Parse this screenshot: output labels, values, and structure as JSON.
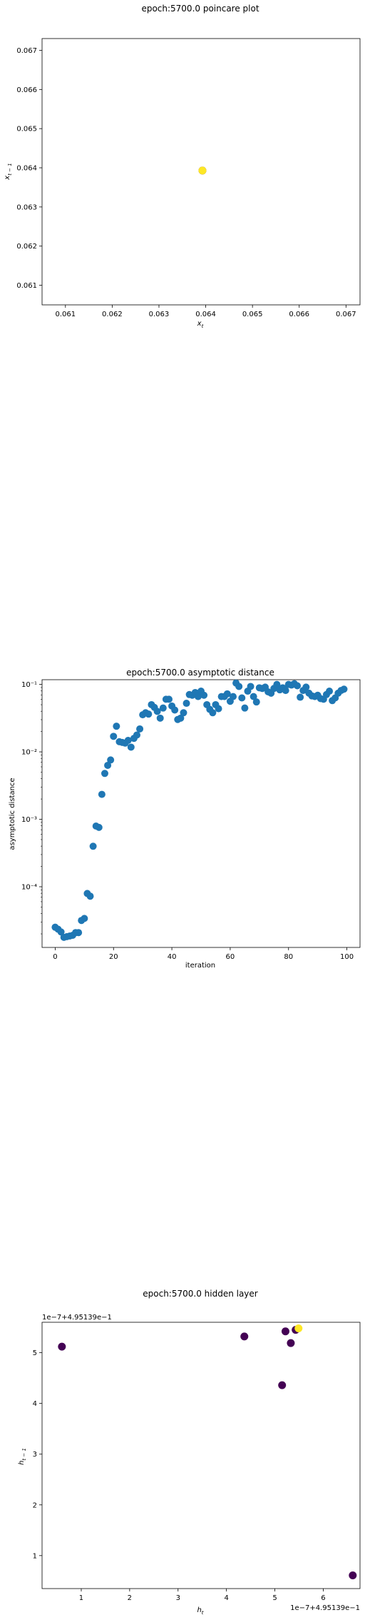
{
  "chart_data": [
    {
      "type": "scatter",
      "title": "epoch:5700.0 poincare plot",
      "xlabel": "x_t",
      "ylabel": "x_{t-1}",
      "xlim": [
        0.0605,
        0.0673
      ],
      "ylim": [
        0.0605,
        0.0673
      ],
      "xticks": [
        0.061,
        0.062,
        0.063,
        0.064,
        0.065,
        0.066,
        0.067
      ],
      "xtick_labels": [
        "0.061",
        "0.062",
        "0.063",
        "0.064",
        "0.065",
        "0.066",
        "0.067"
      ],
      "yticks": [
        0.061,
        0.062,
        0.063,
        0.064,
        0.065,
        0.066,
        0.067
      ],
      "ytick_labels": [
        "0.061",
        "0.062",
        "0.063",
        "0.064",
        "0.065",
        "0.066",
        "0.067"
      ],
      "points": [
        {
          "x": 0.06393,
          "y": 0.06393,
          "color": "#440154"
        },
        {
          "x": 0.06393,
          "y": 0.06393,
          "color": "#fde725"
        }
      ]
    },
    {
      "type": "scatter",
      "title": "epoch:5700.0 asymptotic distance",
      "xlabel": "iteration",
      "ylabel": "asymptotic distance",
      "yscale": "log",
      "xlim": [
        -4.5,
        104.5
      ],
      "ylim_log10": [
        -4.9,
        -0.93
      ],
      "xticks": [
        0,
        20,
        40,
        60,
        80,
        100
      ],
      "xtick_labels": [
        "0",
        "20",
        "40",
        "60",
        "80",
        "100"
      ],
      "yticks_exp": [
        -4,
        -3,
        -2,
        -1
      ],
      "ytick_labels": [
        "10⁻⁴",
        "10⁻³",
        "10⁻²",
        "10⁻¹"
      ],
      "color": "#1f77b4",
      "x": [
        0,
        1,
        2,
        3,
        4,
        5,
        6,
        7,
        8,
        9,
        10,
        11,
        12,
        13,
        14,
        15,
        16,
        17,
        18,
        19,
        20,
        21,
        22,
        23,
        24,
        25,
        26,
        27,
        28,
        29,
        30,
        31,
        32,
        33,
        34,
        35,
        36,
        37,
        38,
        39,
        40,
        41,
        42,
        43,
        44,
        45,
        46,
        47,
        48,
        49,
        50,
        51,
        52,
        53,
        54,
        55,
        56,
        57,
        58,
        59,
        60,
        61,
        62,
        63,
        64,
        65,
        66,
        67,
        68,
        69,
        70,
        71,
        72,
        73,
        74,
        75,
        76,
        77,
        78,
        79,
        80,
        81,
        82,
        83,
        84,
        85,
        86,
        87,
        88,
        89,
        90,
        91,
        92,
        93,
        94,
        95,
        96,
        97,
        98,
        99
      ],
      "log10_y": [
        -4.6,
        -4.63,
        -4.67,
        -4.75,
        -4.74,
        -4.73,
        -4.72,
        -4.68,
        -4.68,
        -4.5,
        -4.47,
        -4.1,
        -4.14,
        -3.4,
        -3.1,
        -3.12,
        -2.63,
        -2.32,
        -2.2,
        -2.12,
        -1.77,
        -1.62,
        -1.85,
        -1.86,
        -1.87,
        -1.83,
        -1.93,
        -1.8,
        -1.75,
        -1.66,
        -1.45,
        -1.42,
        -1.44,
        -1.3,
        -1.34,
        -1.4,
        -1.5,
        -1.35,
        -1.22,
        -1.22,
        -1.32,
        -1.38,
        -1.52,
        -1.5,
        -1.42,
        -1.28,
        -1.15,
        -1.16,
        -1.12,
        -1.18,
        -1.1,
        -1.16,
        -1.3,
        -1.37,
        -1.42,
        -1.3,
        -1.36,
        -1.18,
        -1.18,
        -1.14,
        -1.25,
        -1.18,
        -0.98,
        -1.03,
        -1.2,
        -1.35,
        -1.1,
        -1.03,
        -1.18,
        -1.26,
        -1.05,
        -1.06,
        -1.04,
        -1.11,
        -1.13,
        -1.06,
        -1.0,
        -1.08,
        -1.05,
        -1.09,
        -1.0,
        -1.01,
        -0.99,
        -1.02,
        -1.19,
        -1.09,
        -1.04,
        -1.13,
        -1.17,
        -1.18,
        -1.16,
        -1.21,
        -1.22,
        -1.15,
        -1.1,
        -1.24,
        -1.2,
        -1.13,
        -1.09,
        -1.07
      ]
    },
    {
      "type": "scatter",
      "title": "epoch:5700.0 hidden layer",
      "xlabel": "h_t",
      "ylabel": "h_{t-1}",
      "x_offset_text": "1e−7+4.95139e−1",
      "y_offset_text": "1e−7+4.95139e−1",
      "xlim": [
        0.19,
        6.76
      ],
      "ylim": [
        0.35,
        5.6
      ],
      "xticks": [
        1,
        2,
        3,
        4,
        5,
        6
      ],
      "xtick_labels": [
        "1",
        "2",
        "3",
        "4",
        "5",
        "6"
      ],
      "yticks": [
        1,
        2,
        3,
        4,
        5
      ],
      "ytick_labels": [
        "1",
        "2",
        "3",
        "4",
        "5"
      ],
      "points": [
        {
          "x": 0.6,
          "y": 5.12,
          "color": "#440154"
        },
        {
          "x": 4.37,
          "y": 5.32,
          "color": "#440154"
        },
        {
          "x": 5.15,
          "y": 4.36,
          "color": "#440154"
        },
        {
          "x": 5.22,
          "y": 5.42,
          "color": "#440154"
        },
        {
          "x": 5.33,
          "y": 5.19,
          "color": "#440154"
        },
        {
          "x": 5.43,
          "y": 5.45,
          "color": "#440154"
        },
        {
          "x": 6.61,
          "y": 0.61,
          "color": "#440154"
        },
        {
          "x": 5.49,
          "y": 5.48,
          "color": "#fde725"
        }
      ]
    }
  ]
}
